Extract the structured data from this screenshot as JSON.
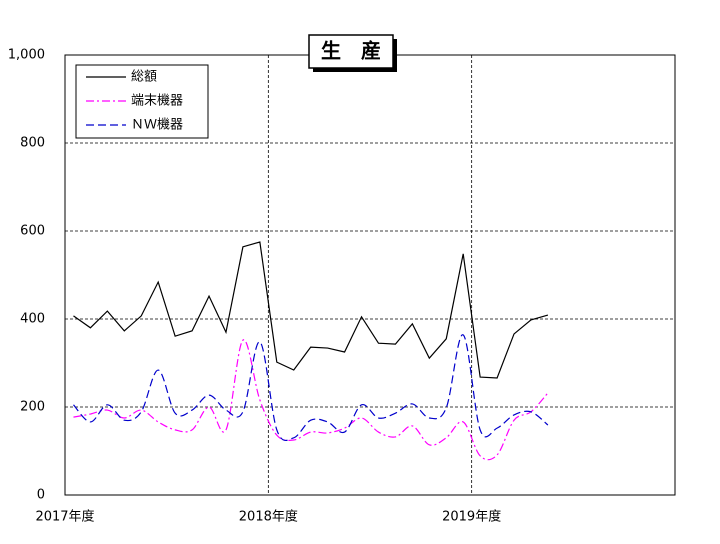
{
  "chart_data": {
    "type": "line",
    "title": "生　産",
    "categories": [
      "2017年度",
      null,
      null,
      null,
      null,
      null,
      null,
      null,
      null,
      null,
      null,
      null,
      "2018年度",
      null,
      null,
      null,
      null,
      null,
      null,
      null,
      null,
      null,
      null,
      null,
      "2019年度",
      null,
      null,
      null,
      null,
      null,
      null,
      null,
      null,
      null,
      null,
      null
    ],
    "series": [
      {
        "name": "総額",
        "color": "#000000",
        "dash": "solid",
        "smooth": false,
        "values": [
          407,
          380,
          418,
          373,
          407,
          484,
          361,
          373,
          452,
          370,
          564,
          575,
          302,
          284,
          336,
          334,
          325,
          405,
          345,
          343,
          389,
          311,
          355,
          548,
          268,
          266,
          366,
          398,
          409,
          null,
          null,
          null,
          null,
          null,
          null,
          null
        ]
      },
      {
        "name": "端末機器",
        "color": "#ff00ff",
        "dash": "dashdot",
        "smooth": true,
        "values": [
          177,
          184,
          193,
          175,
          193,
          166,
          148,
          148,
          200,
          148,
          352,
          216,
          136,
          125,
          143,
          141,
          152,
          175,
          143,
          132,
          157,
          114,
          130,
          166,
          89,
          91,
          170,
          189,
          232,
          null,
          null,
          null,
          null,
          null,
          null,
          null
        ]
      },
      {
        "name": "ＮＷ機器",
        "color": "#0000cc",
        "dash": "dash",
        "smooth": true,
        "values": [
          205,
          166,
          205,
          170,
          189,
          284,
          186,
          193,
          227,
          193,
          189,
          348,
          148,
          130,
          170,
          166,
          143,
          205,
          175,
          186,
          207,
          175,
          198,
          364,
          148,
          152,
          182,
          189,
          159,
          null,
          null,
          null,
          null,
          null,
          null,
          null
        ]
      }
    ],
    "ylim": [
      0,
      1000
    ],
    "yticks": [
      0,
      200,
      400,
      600,
      800,
      {
        "value": 1000,
        "label": "1,000"
      }
    ],
    "grid": true,
    "legend": "top-left"
  }
}
